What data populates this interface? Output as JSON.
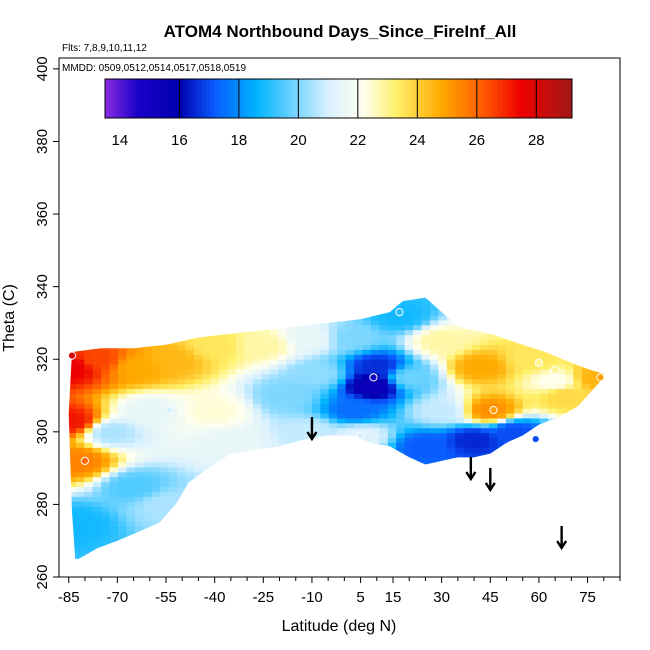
{
  "chart_data": {
    "type": "heatmap",
    "title": "ATOM4 Northbound Days_Since_FireInf_All",
    "flights_note": "Flts: 7,8,9,10,11,12",
    "dates_note": "MMDD: 0509,0512,0514,0517,0518,0519",
    "xlabel": "Latitude (deg N)",
    "ylabel": "Theta (C)",
    "xlim": [
      -88,
      85
    ],
    "ylim": [
      260,
      403
    ],
    "x_ticks": [
      -85,
      -70,
      -55,
      -40,
      -25,
      -10,
      5,
      15,
      30,
      45,
      60,
      75
    ],
    "y_ticks": [
      260,
      280,
      300,
      320,
      340,
      360,
      380,
      400
    ],
    "colorbar": {
      "min": 13.5,
      "max": 29.2,
      "ticks": [
        14,
        16,
        18,
        20,
        22,
        24,
        26,
        28
      ],
      "boundaries": [
        16,
        18,
        20,
        22,
        24,
        26,
        28
      ],
      "stops": [
        {
          "value": 13.5,
          "color": "#8a2be2"
        },
        {
          "value": 14.6,
          "color": "#1a00c8"
        },
        {
          "value": 16.0,
          "color": "#0000b0"
        },
        {
          "value": 17.2,
          "color": "#0a5cff"
        },
        {
          "value": 18.6,
          "color": "#00b4ff"
        },
        {
          "value": 21.0,
          "color": "#d8f0ff"
        },
        {
          "value": 22.2,
          "color": "#ffffee"
        },
        {
          "value": 23.3,
          "color": "#fff06a"
        },
        {
          "value": 24.8,
          "color": "#ffaa00"
        },
        {
          "value": 26.3,
          "color": "#ff5500"
        },
        {
          "value": 27.5,
          "color": "#ee0000"
        },
        {
          "value": 29.2,
          "color": "#a01818"
        }
      ]
    },
    "field_knots": [
      {
        "lat": -84,
        "theta": 318,
        "value": 27.6
      },
      {
        "lat": -84,
        "theta": 303,
        "value": 27.2
      },
      {
        "lat": -82,
        "theta": 292,
        "value": 25.5
      },
      {
        "lat": -83,
        "theta": 275,
        "value": 18.8
      },
      {
        "lat": -76,
        "theta": 320,
        "value": 26.5
      },
      {
        "lat": -64,
        "theta": 318,
        "value": 24.8
      },
      {
        "lat": -60,
        "theta": 306,
        "value": 21.5
      },
      {
        "lat": -72,
        "theta": 300,
        "value": 20.5
      },
      {
        "lat": -65,
        "theta": 285,
        "value": 19.5
      },
      {
        "lat": -55,
        "theta": 280,
        "value": 20.5
      },
      {
        "lat": -53,
        "theta": 320,
        "value": 24.5
      },
      {
        "lat": -40,
        "theta": 324,
        "value": 23.5
      },
      {
        "lat": -40,
        "theta": 306,
        "value": 22.4
      },
      {
        "lat": -35,
        "theta": 297,
        "value": 21.5
      },
      {
        "lat": -25,
        "theta": 324,
        "value": 22.8
      },
      {
        "lat": -18,
        "theta": 310,
        "value": 20.0
      },
      {
        "lat": -10,
        "theta": 326,
        "value": 21.5
      },
      {
        "lat": -8,
        "theta": 316,
        "value": 20.2
      },
      {
        "lat": -10,
        "theta": 300,
        "value": 20.8
      },
      {
        "lat": 2,
        "theta": 326,
        "value": 20.0
      },
      {
        "lat": 10,
        "theta": 318,
        "value": 16.6
      },
      {
        "lat": 9,
        "theta": 313,
        "value": 15.3
      },
      {
        "lat": 3,
        "theta": 306,
        "value": 17.5
      },
      {
        "lat": 5,
        "theta": 299,
        "value": 21.2
      },
      {
        "lat": 17,
        "theta": 332,
        "value": 18.8
      },
      {
        "lat": 20,
        "theta": 315,
        "value": 19.8
      },
      {
        "lat": 30,
        "theta": 325,
        "value": 22.8
      },
      {
        "lat": 30,
        "theta": 306,
        "value": 20.8
      },
      {
        "lat": 25,
        "theta": 296,
        "value": 17.2
      },
      {
        "lat": 42,
        "theta": 318,
        "value": 24.8
      },
      {
        "lat": 45,
        "theta": 306,
        "value": 25.3
      },
      {
        "lat": 40,
        "theta": 298,
        "value": 16.5
      },
      {
        "lat": 52,
        "theta": 300,
        "value": 17.0
      },
      {
        "lat": 58,
        "theta": 320,
        "value": 23.5
      },
      {
        "lat": 65,
        "theta": 314,
        "value": 22.2
      },
      {
        "lat": 68,
        "theta": 310,
        "value": 23.8
      },
      {
        "lat": 78,
        "theta": 315,
        "value": 24.6
      }
    ],
    "domain_top": [
      [
        -84,
        322
      ],
      [
        -75,
        323
      ],
      [
        -65,
        323
      ],
      [
        -55,
        324
      ],
      [
        -45,
        326
      ],
      [
        -35,
        327
      ],
      [
        -25,
        328
      ],
      [
        -15,
        329
      ],
      [
        -5,
        330
      ],
      [
        5,
        331
      ],
      [
        14,
        333
      ],
      [
        18,
        336
      ],
      [
        25,
        337
      ],
      [
        30,
        333
      ],
      [
        35,
        329
      ],
      [
        45,
        327
      ],
      [
        55,
        324
      ],
      [
        62,
        322
      ],
      [
        70,
        319
      ],
      [
        76,
        317
      ],
      [
        80,
        316
      ]
    ],
    "domain_bottom": [
      [
        80,
        315
      ],
      [
        76,
        311
      ],
      [
        72,
        307
      ],
      [
        66,
        304
      ],
      [
        60,
        302
      ],
      [
        55,
        299
      ],
      [
        50,
        297
      ],
      [
        45,
        294
      ],
      [
        40,
        293
      ],
      [
        35,
        293
      ],
      [
        30,
        292
      ],
      [
        25,
        291
      ],
      [
        20,
        293
      ],
      [
        14,
        296
      ],
      [
        8,
        297
      ],
      [
        3,
        299
      ],
      [
        -5,
        299
      ],
      [
        -12,
        298
      ],
      [
        -20,
        296
      ],
      [
        -28,
        295
      ],
      [
        -35,
        294
      ],
      [
        -42,
        290
      ],
      [
        -48,
        286
      ],
      [
        -52,
        280
      ],
      [
        -57,
        275
      ],
      [
        -62,
        273
      ],
      [
        -70,
        270
      ],
      [
        -76,
        268
      ],
      [
        -82,
        265
      ],
      [
        -83,
        265
      ],
      [
        -84,
        278
      ],
      [
        -85,
        305
      ]
    ],
    "arrows": [
      {
        "lat": -10,
        "theta": 298
      },
      {
        "lat": 39,
        "theta": 287
      },
      {
        "lat": 45,
        "theta": 284
      },
      {
        "lat": 67,
        "theta": 268
      }
    ],
    "points": [
      {
        "lat": -84,
        "theta": 321,
        "value": 28
      },
      {
        "lat": -80,
        "theta": 292,
        "value": 26
      },
      {
        "lat": -54,
        "theta": 306,
        "value": 21
      },
      {
        "lat": 5,
        "theta": 299,
        "value": 21
      },
      {
        "lat": 9,
        "theta": 315,
        "value": 15
      },
      {
        "lat": 17,
        "theta": 333,
        "value": 19
      },
      {
        "lat": 46,
        "theta": 306,
        "value": 25
      },
      {
        "lat": 60,
        "theta": 319,
        "value": 23
      },
      {
        "lat": 59,
        "theta": 298,
        "value": 17
      },
      {
        "lat": 65,
        "theta": 317,
        "value": 23
      },
      {
        "lat": 79,
        "theta": 315,
        "value": 25
      }
    ]
  }
}
